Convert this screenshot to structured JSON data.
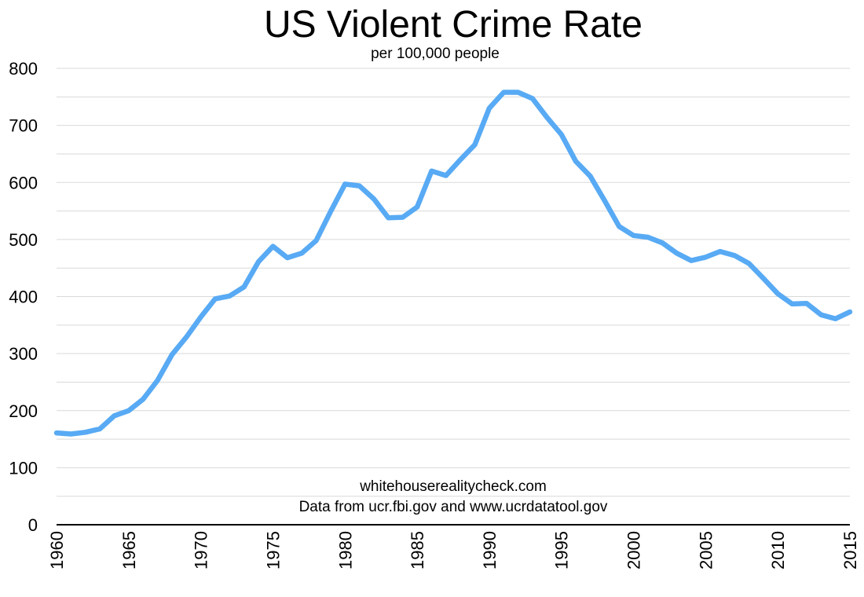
{
  "chart_data": {
    "type": "line",
    "title": "US Violent Crime Rate",
    "subtitle": "per 100,000 people",
    "notes": [
      "whitehouserealitycheck.com",
      "Data from ucr.fbi.gov and www.ucrdatatool.gov"
    ],
    "xlabel": "",
    "ylabel": "",
    "xlim": [
      1960,
      2015
    ],
    "ylim": [
      0,
      800
    ],
    "y_ticks": [
      0,
      100,
      200,
      300,
      400,
      500,
      600,
      700,
      800
    ],
    "x_ticks": [
      1960,
      1965,
      1970,
      1975,
      1980,
      1985,
      1990,
      1995,
      2000,
      2005,
      2010,
      2015
    ],
    "grid": true,
    "line_color": "#58aaf4",
    "x": [
      1960,
      1961,
      1962,
      1963,
      1964,
      1965,
      1966,
      1967,
      1968,
      1969,
      1970,
      1971,
      1972,
      1973,
      1974,
      1975,
      1976,
      1977,
      1978,
      1979,
      1980,
      1981,
      1982,
      1983,
      1984,
      1985,
      1986,
      1987,
      1988,
      1989,
      1990,
      1991,
      1992,
      1993,
      1994,
      1995,
      1996,
      1997,
      1998,
      1999,
      2000,
      2001,
      2002,
      2003,
      2004,
      2005,
      2006,
      2007,
      2008,
      2009,
      2010,
      2011,
      2012,
      2013,
      2014,
      2015
    ],
    "values": [
      161,
      159,
      162,
      168,
      191,
      200,
      220,
      253,
      298,
      329,
      364,
      396,
      401,
      417,
      461,
      488,
      468,
      476,
      498,
      549,
      597,
      594,
      571,
      538,
      539,
      557,
      620,
      612,
      640,
      666,
      730,
      758,
      758,
      747,
      714,
      684,
      637,
      611,
      568,
      523,
      507,
      504,
      494,
      476,
      463,
      469,
      479,
      472,
      458,
      432,
      405,
      387,
      388,
      368,
      361,
      373
    ]
  }
}
